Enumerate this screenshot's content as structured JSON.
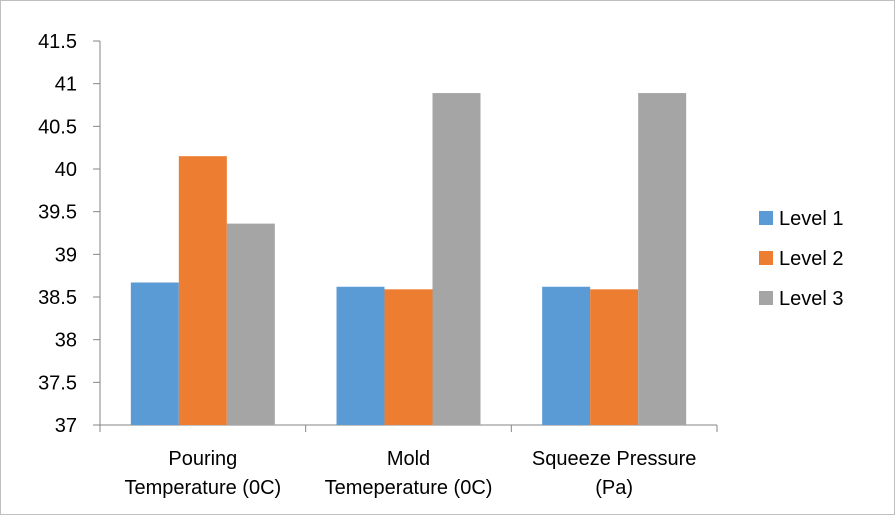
{
  "chart_data": {
    "type": "bar",
    "categories": [
      [
        "Pouring",
        "Temperature (0C)"
      ],
      [
        "Mold",
        "Temeperature (0C)"
      ],
      [
        "Squeeze Pressure",
        "(Pa)"
      ]
    ],
    "series": [
      {
        "name": "Level 1",
        "color": "#5b9bd5",
        "values": [
          38.67,
          38.62,
          38.62
        ]
      },
      {
        "name": "Level 2",
        "color": "#ed7d31",
        "values": [
          40.15,
          38.59,
          38.59
        ]
      },
      {
        "name": "Level 3",
        "color": "#a5a5a5",
        "values": [
          39.36,
          40.89,
          40.89
        ]
      }
    ],
    "yticks": [
      "37",
      "37.5",
      "38",
      "38.5",
      "39",
      "39.5",
      "40",
      "40.5",
      "41",
      "41.5"
    ],
    "ylim": [
      37,
      41.5
    ],
    "grid": false,
    "legend_position": "right"
  }
}
